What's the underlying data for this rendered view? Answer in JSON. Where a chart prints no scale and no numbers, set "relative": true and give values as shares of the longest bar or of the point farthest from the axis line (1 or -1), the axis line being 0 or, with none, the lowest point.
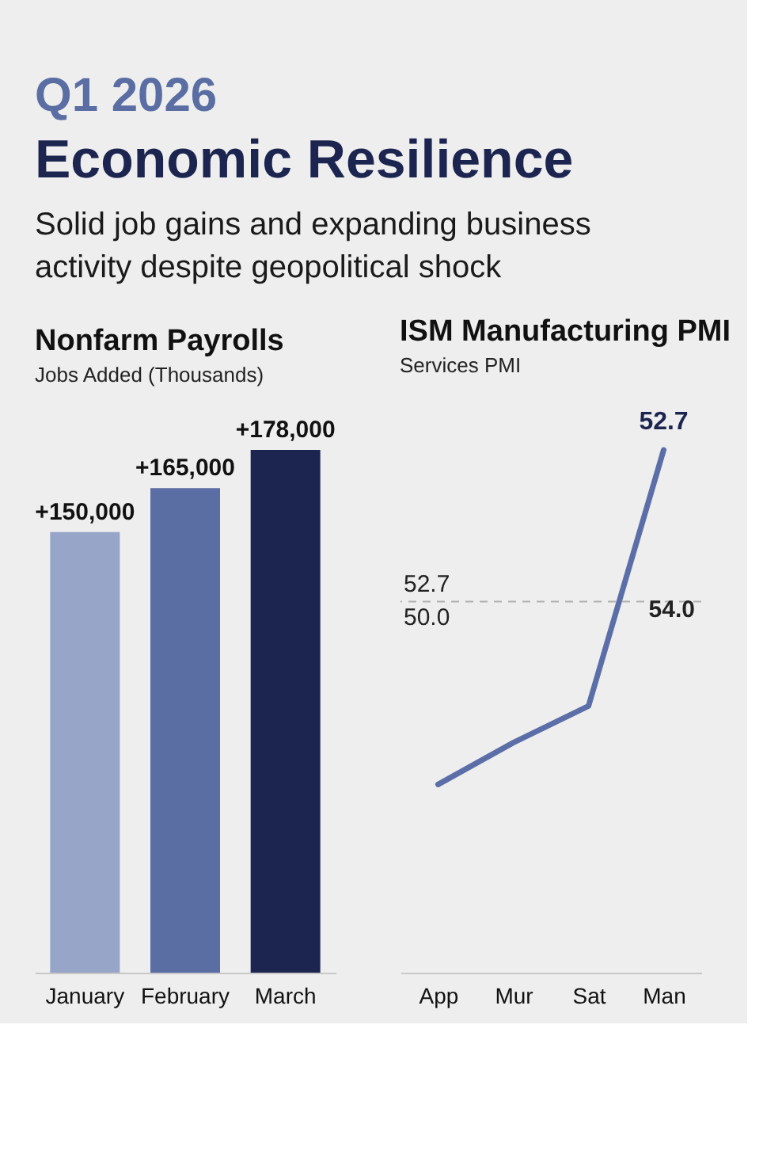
{
  "chart_data": [
    {
      "type": "other",
      "title": "Q1 2026",
      "subtitle": "Economic Resilience",
      "annotations": [
        "Solid job gains and expanding business activity despite geopolitical shock"
      ]
    },
    {
      "type": "bar",
      "title": "Nonfarm Payrolls",
      "subtitle": "Jobs Added (Thousands)",
      "categories": [
        "January",
        "February",
        "March"
      ],
      "values": [
        150000,
        165000,
        178000
      ],
      "colors": [
        "#97a6c8",
        "#5a6ea3",
        "#1c2550"
      ],
      "value_labels": [
        "+150,000",
        "+165,000",
        "+178,000"
      ],
      "grid": false
    },
    {
      "type": "line",
      "title": "ISM Manufacturing PMI",
      "subtitle": "Services PMI",
      "categories": [
        "App",
        "Mur",
        "Sat",
        "Man"
      ],
      "relative": true,
      "series": [
        {
          "color": "#5b6ea8",
          "values": [
            0.36,
            0.44,
            0.51,
            1
          ]
        }
      ],
      "value_labels": [
        null,
        null,
        null,
        "52.7"
      ],
      "marker": "none",
      "line_style": "solid",
      "grid": false,
      "ref_lines": [
        {
          "axis": "y",
          "value": 0.71,
          "color": "#b0b0b0",
          "line_style": "dashed"
        }
      ],
      "annotations": [
        "52.7",
        "50.0",
        "54.0"
      ]
    }
  ]
}
